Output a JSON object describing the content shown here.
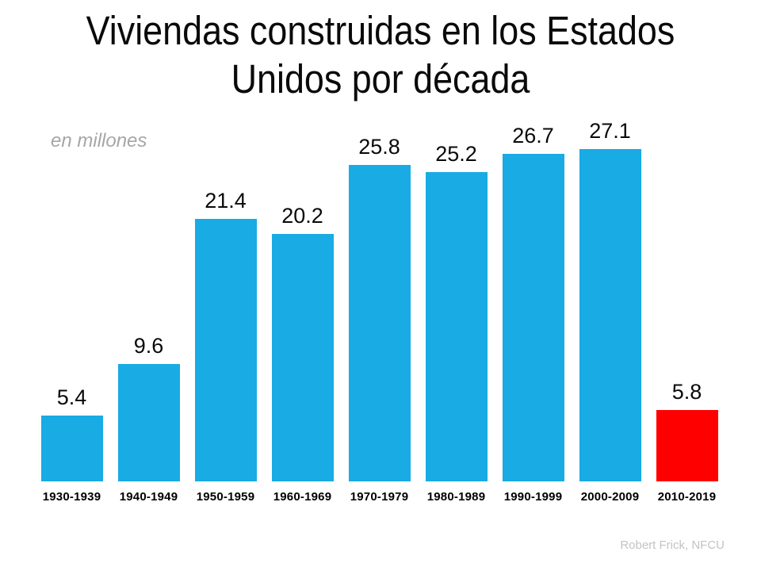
{
  "slide": {
    "title_lines": [
      "Viviendas construidas en los Estados",
      "Unidos por década"
    ],
    "subtitle": "en millones",
    "attribution": "Robert Frick, NFCU"
  },
  "colors": {
    "background": "#FFFFFF",
    "bar": "#18ABE4",
    "bar_highlight": "#FF0000",
    "title_text": "#0A0A0A",
    "value_label_text": "#0A0A0A",
    "axis_label_text": "#000000",
    "subtitle_text": "#A6A6A6",
    "attribution_text": "#C3C3C3"
  },
  "chart_data": {
    "type": "bar",
    "title": "Viviendas construidas en los Estados Unidos por década",
    "subtitle": "en millones",
    "categories": [
      "1930-1939",
      "1940-1949",
      "1950-1959",
      "1960-1969",
      "1970-1979",
      "1980-1989",
      "1990-1999",
      "2000-2009",
      "2010-2019"
    ],
    "values": [
      5.4,
      9.6,
      21.4,
      20.2,
      25.8,
      25.2,
      26.7,
      27.1,
      5.8
    ],
    "highlight_index": 8,
    "highlight_category": "2010-2019",
    "ylim": [
      0,
      27.1
    ],
    "grid": false,
    "legend": false,
    "value_labels": true,
    "annotations": [
      "Robert Frick, NFCU"
    ]
  }
}
